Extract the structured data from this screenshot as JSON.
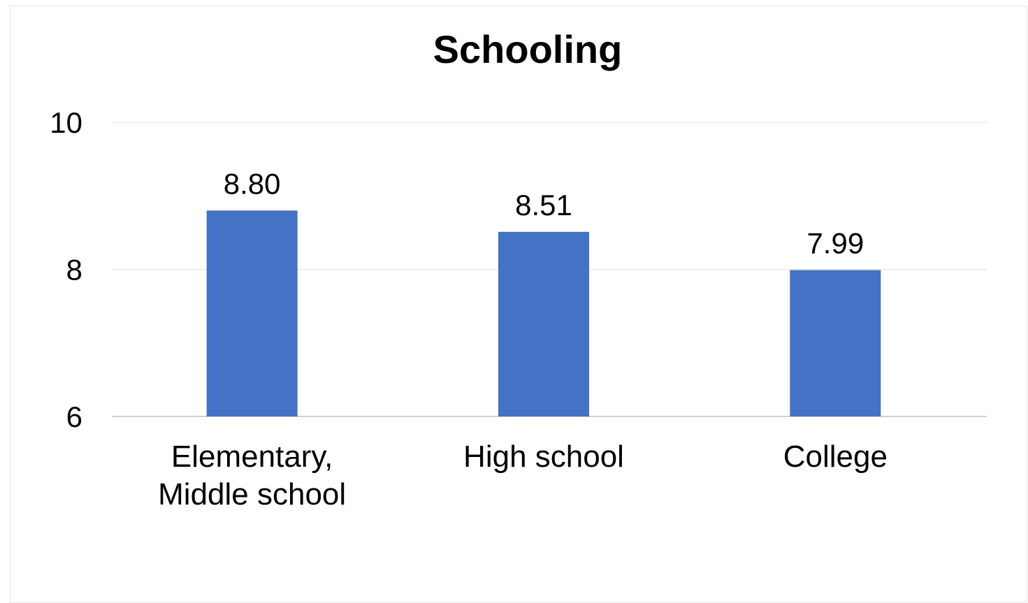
{
  "chart_data": {
    "type": "bar",
    "title": "Schooling",
    "xlabel": "",
    "ylabel": "",
    "ylim": [
      6,
      10
    ],
    "yticks": [
      6,
      8,
      10
    ],
    "grid": true,
    "legend": "none",
    "bar_color": "#4472C4",
    "categories": [
      [
        "Elementary,",
        "Middle school"
      ],
      [
        "High school"
      ],
      [
        "College"
      ]
    ],
    "values": [
      8.8,
      8.51,
      7.99
    ],
    "data_labels": [
      "8.80",
      "8.51",
      "7.99"
    ]
  }
}
